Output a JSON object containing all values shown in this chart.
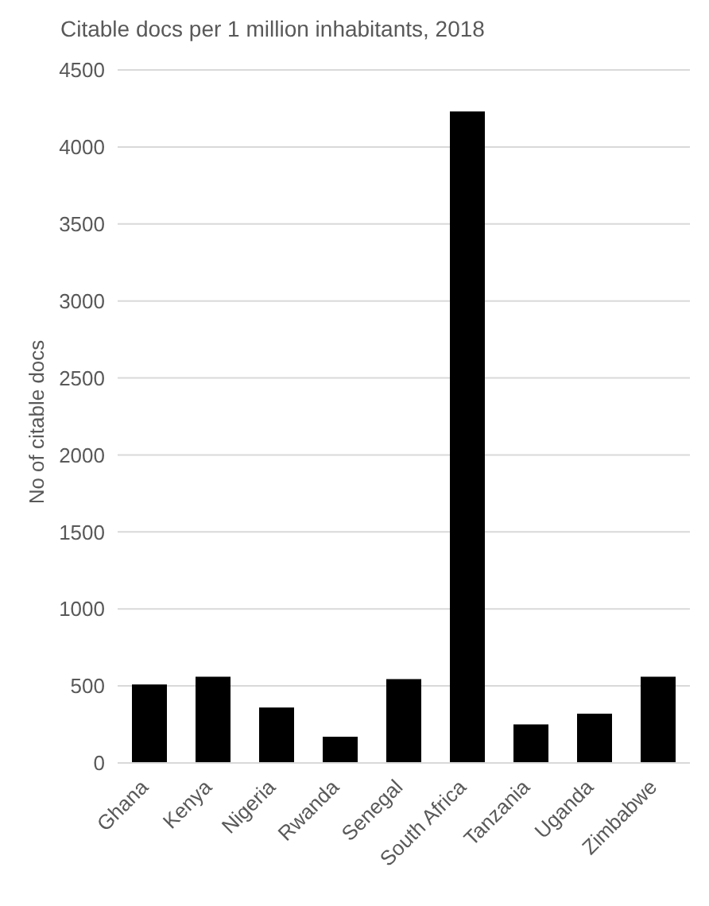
{
  "chart_data": {
    "type": "bar",
    "title": "Citable docs per 1 million inhabitants, 2018",
    "ylabel": "No of citable docs",
    "categories": [
      "Ghana",
      "Kenya",
      "Nigeria",
      "Rwanda",
      "Senegal",
      "South Africa",
      "Tanzania",
      "Uganda",
      "Zimbabwe"
    ],
    "values": [
      510,
      560,
      360,
      170,
      545,
      4230,
      250,
      320,
      560
    ],
    "color": "#000000",
    "ylim": [
      0,
      4500
    ],
    "yticks": [
      0,
      500,
      1000,
      1500,
      2000,
      2500,
      3000,
      3500,
      4000,
      4500
    ],
    "grid": "y"
  }
}
